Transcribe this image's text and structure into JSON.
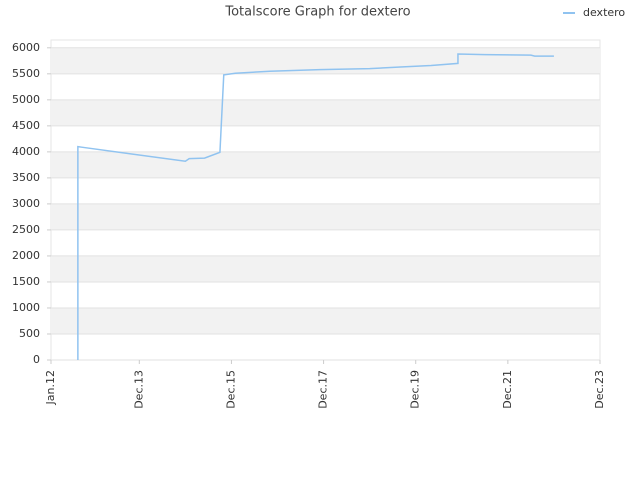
{
  "chart_data": {
    "type": "line",
    "title": "Totalscore Graph for dextero",
    "x": [
      "2012-08",
      "2012-08",
      "2012-09",
      "2014-12",
      "2015-01",
      "2015-05",
      "2015-09",
      "2015-10",
      "2016-01",
      "2016-10",
      "2017-11",
      "2018-12",
      "2019-08",
      "2020-04",
      "2020-11",
      "2020-11",
      "2021-06",
      "2022-06",
      "2022-07",
      "2022-12"
    ],
    "series": [
      {
        "name": "dextero",
        "color": "#90c3f0",
        "values": [
          0,
          4100,
          4090,
          3820,
          3870,
          3880,
          3990,
          5480,
          5510,
          5550,
          5580,
          5600,
          5630,
          5660,
          5700,
          5880,
          5870,
          5860,
          5840,
          5840
        ]
      }
    ],
    "xlim": [
      "2012-01",
      "2023-12"
    ],
    "xticks": [
      {
        "value": "2012-01",
        "label": "Jan.12"
      },
      {
        "value": "2013-12",
        "label": "Dec.13"
      },
      {
        "value": "2015-12",
        "label": "Dec.15"
      },
      {
        "value": "2017-12",
        "label": "Dec.17"
      },
      {
        "value": "2019-12",
        "label": "Dec.19"
      },
      {
        "value": "2021-12",
        "label": "Dec.21"
      },
      {
        "value": "2023-12",
        "label": "Dec.23"
      }
    ],
    "ylim": [
      0,
      6150
    ],
    "yticks": [
      0,
      500,
      1000,
      1500,
      2000,
      2500,
      3000,
      3500,
      4000,
      4500,
      5000,
      5500,
      6000
    ],
    "grid": true,
    "legend": "top-right"
  }
}
